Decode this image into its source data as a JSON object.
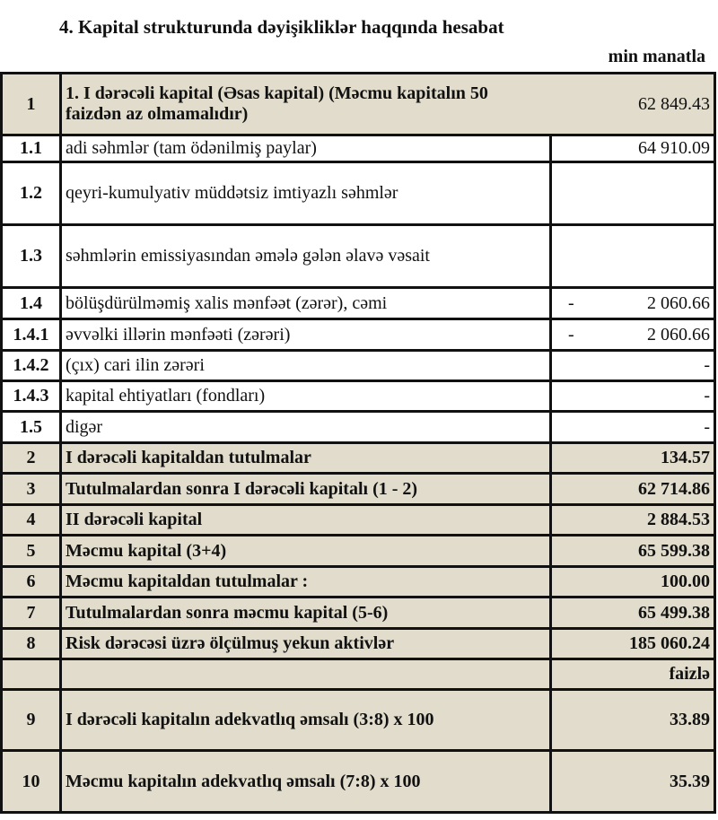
{
  "title": "4. Kapital strukturunda dəyişikliklər haqqında hesabat",
  "unit": "min manatla",
  "colors": {
    "shaded_row": "#e1dccb",
    "border": "#111111"
  },
  "rows": [
    {
      "num": "1",
      "label": "1. I dərəcəli kapital (Əsas kapital) (Məcmu kapitalın 50 faizdən  az olmamalıdır)",
      "value": "62 849.43",
      "dash": "",
      "shaded": true
    },
    {
      "num": "1.1",
      "label": "adi səhmlər (tam ödənilmiş paylar)",
      "value": "64 910.09",
      "dash": "",
      "shaded": false
    },
    {
      "num": "1.2",
      "label": "qeyri-kumulyativ müddətsiz imtiyazlı səhmlər",
      "value": "",
      "dash": "",
      "shaded": false
    },
    {
      "num": "1.3",
      "label": "səhmlərin emissiyasından əmələ gələn  əlavə vəsait",
      "value": "",
      "dash": "",
      "shaded": false
    },
    {
      "num": "1.4",
      "label": "bölüşdürülməmiş xalis mənfəət (zərər), cəmi",
      "value": "2 060.66",
      "dash": "-",
      "shaded": false
    },
    {
      "num": "1.4.1",
      "label": "əvvəlki illərin mənfəəti (zərəri)",
      "value": "2 060.66",
      "dash": "-",
      "shaded": false
    },
    {
      "num": "1.4.2",
      "label": "(çıx) cari ilin zərəri",
      "value": "-",
      "dash": "",
      "shaded": false
    },
    {
      "num": "1.4.3",
      "label": "kapital ehtiyatları (fondları)",
      "value": "-",
      "dash": "",
      "shaded": false
    },
    {
      "num": "1.5",
      "label": "digər",
      "value": "-",
      "dash": "",
      "shaded": false
    },
    {
      "num": "2",
      "label": "I dərəcəli kapitaldan  tutulmalar",
      "value": "134.57",
      "dash": "",
      "shaded": true
    },
    {
      "num": "3",
      "label": "Tutulmalardan  sonra I dərəcəli kapitalı (1 - 2)",
      "value": "62 714.86",
      "dash": "",
      "shaded": true
    },
    {
      "num": "4",
      "label": "II dərəcəli  kapital",
      "value": "2 884.53",
      "dash": "",
      "shaded": true
    },
    {
      "num": "5",
      "label": "Məcmu kapital (3+4)",
      "value": "65 599.38",
      "dash": "",
      "shaded": true
    },
    {
      "num": "6",
      "label": "Məcmu kapitaldan tutulmalar :",
      "value": "100.00",
      "dash": "",
      "shaded": true
    },
    {
      "num": "7",
      "label": "Tutulmalardan sonra məcmu kapital (5-6)",
      "value": "65 499.38",
      "dash": "",
      "shaded": true
    },
    {
      "num": "8",
      "label": "Risk dərəcəsi üzrə ölçülmuş  yekun aktivlər",
      "value": "185 060.24",
      "dash": "",
      "shaded": true
    },
    {
      "num": "",
      "label": "",
      "value": "faizlə",
      "dash": "",
      "shaded": true
    },
    {
      "num": "9",
      "label": "I dərəcəli  kapitalın  adekvatlıq əmsalı (3:8) x 100",
      "value": "33.89",
      "dash": "",
      "shaded": true
    },
    {
      "num": "10",
      "label": "Məcmu kapitalın  adekvatlıq  əmsalı (7:8) x 100",
      "value": "35.39",
      "dash": "",
      "shaded": true
    }
  ]
}
